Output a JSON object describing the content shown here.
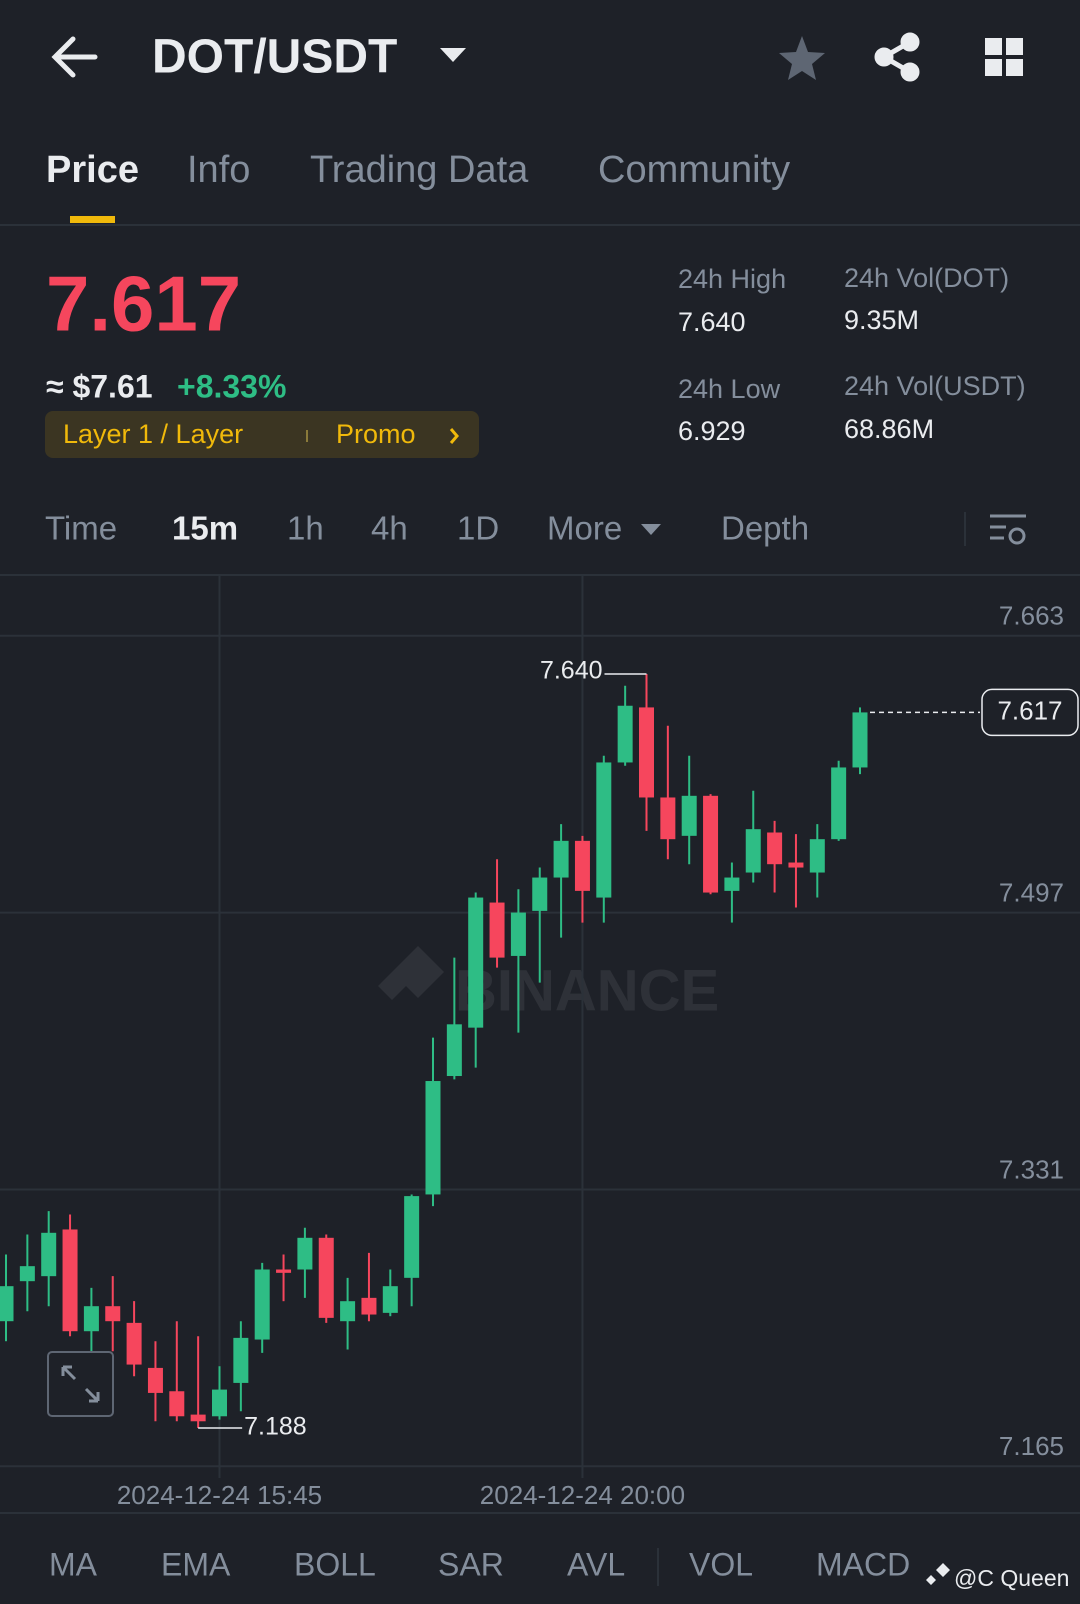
{
  "header": {
    "title": "DOT/USDT"
  },
  "tabs": [
    "Price",
    "Info",
    "Trading Data",
    "Community"
  ],
  "price": {
    "last": "7.617",
    "usd": "≈ $7.61",
    "change": "+8.33%",
    "tag": "Layer 1 / Layer",
    "promo": "Promo"
  },
  "stats": [
    {
      "label": "24h High",
      "value": "7.640"
    },
    {
      "label": "24h Vol(DOT)",
      "value": "9.35M"
    },
    {
      "label": "24h Low",
      "value": "6.929"
    },
    {
      "label": "24h Vol(USDT)",
      "value": "68.86M"
    }
  ],
  "intervals": [
    "Time",
    "15m",
    "1h",
    "4h",
    "1D",
    "More",
    "Depth"
  ],
  "chart_data": {
    "type": "candlestick",
    "categories": [
      null,
      null,
      null,
      null,
      null,
      null,
      null,
      null,
      null,
      null,
      "2024-12-24 15:45",
      null,
      null,
      null,
      null,
      null,
      null,
      null,
      null,
      null,
      null,
      null,
      null,
      null,
      null,
      null,
      null,
      "2024-12-24 20:00",
      null,
      null,
      null,
      null,
      null,
      null,
      null,
      null,
      null,
      null,
      null,
      null,
      null
    ],
    "open": [
      7.252,
      7.276,
      7.279,
      7.307,
      7.246,
      7.261,
      7.251,
      7.224,
      7.21,
      7.196,
      7.195,
      7.215,
      7.241,
      7.283,
      7.283,
      7.302,
      7.252,
      7.266,
      7.257,
      7.278,
      7.328,
      7.399,
      7.428,
      7.503,
      7.471,
      7.498,
      7.518,
      7.54,
      7.506,
      7.587,
      7.62,
      7.566,
      7.543,
      7.567,
      7.51,
      7.521,
      7.545,
      7.527,
      7.521,
      7.541,
      7.584
    ],
    "high": [
      7.292,
      7.304,
      7.318,
      7.316,
      7.272,
      7.279,
      7.264,
      7.24,
      7.252,
      7.243,
      7.225,
      7.252,
      7.287,
      7.292,
      7.308,
      7.304,
      7.278,
      7.293,
      7.283,
      7.328,
      7.422,
      7.47,
      7.509,
      7.529,
      7.511,
      7.524,
      7.55,
      7.543,
      7.591,
      7.633,
      7.64,
      7.609,
      7.591,
      7.568,
      7.527,
      7.57,
      7.552,
      7.544,
      7.55,
      7.588,
      7.62
    ],
    "low": [
      7.24,
      7.258,
      7.261,
      7.243,
      7.234,
      7.234,
      7.219,
      7.192,
      7.192,
      7.188,
      7.193,
      7.198,
      7.233,
      7.264,
      7.266,
      7.251,
      7.235,
      7.252,
      7.255,
      7.261,
      7.321,
      7.397,
      7.404,
      7.464,
      7.425,
      7.455,
      7.482,
      7.491,
      7.491,
      7.585,
      7.546,
      7.529,
      7.526,
      7.508,
      7.491,
      7.515,
      7.509,
      7.5,
      7.506,
      7.54,
      7.58
    ],
    "close": [
      7.273,
      7.285,
      7.305,
      7.246,
      7.261,
      7.252,
      7.226,
      7.209,
      7.195,
      7.192,
      7.211,
      7.242,
      7.283,
      7.281,
      7.302,
      7.254,
      7.264,
      7.256,
      7.273,
      7.327,
      7.396,
      7.43,
      7.506,
      7.47,
      7.497,
      7.518,
      7.54,
      7.51,
      7.587,
      7.621,
      7.566,
      7.541,
      7.567,
      7.509,
      7.518,
      7.547,
      7.526,
      7.524,
      7.541,
      7.584,
      7.617
    ],
    "up_color": "#2ebd85",
    "down_color": "#f6465d",
    "ylim": [
      7.146,
      7.685
    ],
    "yticks": [
      7.663,
      7.497,
      7.331,
      7.165
    ],
    "grid": true,
    "max_label": {
      "value": 7.64,
      "label": "7.640"
    },
    "min_label": {
      "value": 7.188,
      "label": "7.188"
    },
    "last_price": {
      "value": 7.617,
      "label": "7.617"
    },
    "watermark": "BINANCE"
  },
  "indicators": [
    "MA",
    "EMA",
    "BOLL",
    "SAR",
    "AVL",
    "VOL",
    "MACD"
  ],
  "credit": "@C Queen"
}
